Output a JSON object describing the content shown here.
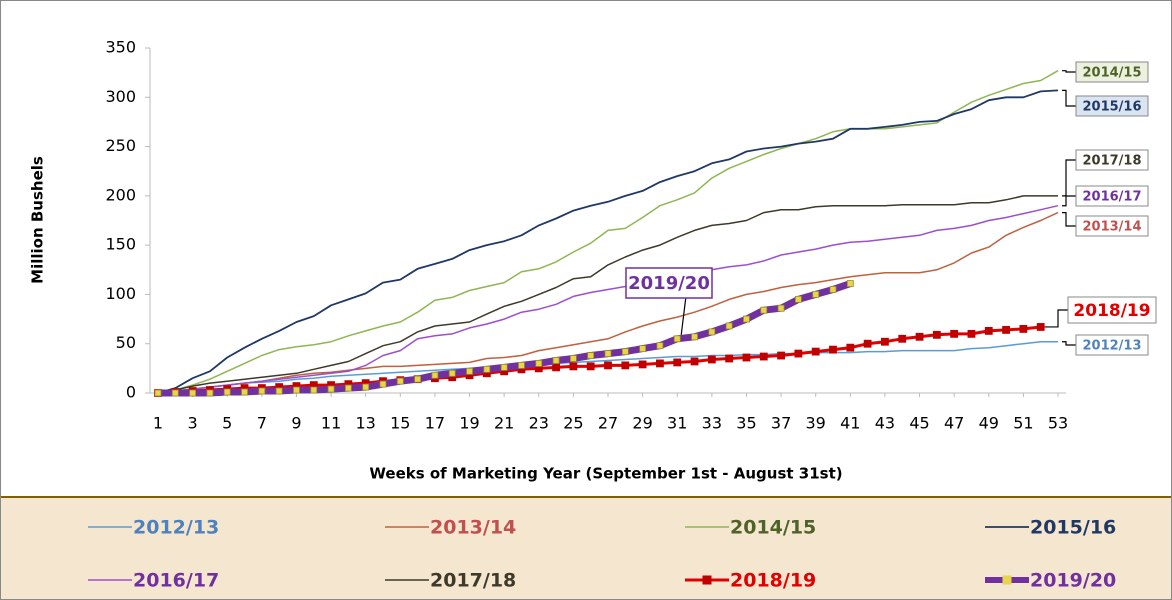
{
  "chart_data": {
    "type": "line",
    "y_label": "Million Bushels",
    "x_label": "Weeks of Marketing Year (September 1st - August 31st)",
    "x": [
      1,
      2,
      3,
      4,
      5,
      6,
      7,
      8,
      9,
      10,
      11,
      12,
      13,
      14,
      15,
      16,
      17,
      18,
      19,
      20,
      21,
      22,
      23,
      24,
      25,
      26,
      27,
      28,
      29,
      30,
      31,
      32,
      33,
      34,
      35,
      36,
      37,
      38,
      39,
      40,
      41,
      42,
      43,
      44,
      45,
      46,
      47,
      48,
      49,
      50,
      51,
      52,
      53
    ],
    "xlim": [
      1,
      53
    ],
    "xticks": [
      1,
      3,
      5,
      7,
      9,
      11,
      13,
      15,
      17,
      19,
      21,
      23,
      25,
      27,
      29,
      31,
      33,
      35,
      37,
      39,
      41,
      43,
      45,
      47,
      49,
      51,
      53
    ],
    "ylim": [
      0,
      350
    ],
    "yticks": [
      0,
      50,
      100,
      150,
      200,
      250,
      300,
      350
    ],
    "grid": false,
    "legend": "bottom",
    "series": [
      {
        "name": "2012/13",
        "color": "#5b9bd5",
        "text_color": "#4f81bd",
        "line_width": 1.5,
        "values": [
          0,
          2,
          4,
          6,
          8,
          10,
          11,
          12,
          14,
          15,
          17,
          18,
          19,
          20,
          21,
          22,
          23,
          24,
          25,
          26,
          27,
          28,
          29,
          30,
          31,
          32,
          33,
          34,
          35,
          36,
          37,
          37,
          38,
          38,
          39,
          39,
          40,
          40,
          41,
          41,
          41,
          42,
          42,
          43,
          43,
          43,
          43,
          45,
          46,
          48,
          50,
          52,
          52
        ]
      },
      {
        "name": "2013/14",
        "color": "#c0603d",
        "text_color": "#c0504d",
        "line_width": 1.5,
        "values": [
          0,
          2,
          4,
          6,
          8,
          10,
          12,
          15,
          18,
          20,
          21,
          23,
          25,
          27,
          27,
          28,
          29,
          30,
          31,
          35,
          36,
          38,
          43,
          46,
          49,
          52,
          55,
          62,
          68,
          73,
          77,
          82,
          88,
          95,
          100,
          103,
          107,
          110,
          112,
          115,
          118,
          120,
          122,
          122,
          122,
          125,
          132,
          142,
          148,
          160,
          168,
          175,
          183
        ]
      },
      {
        "name": "2014/15",
        "color": "#8fb652",
        "text_color": "#4f6228",
        "line_width": 1.5,
        "values": [
          0,
          3,
          8,
          14,
          22,
          30,
          38,
          44,
          47,
          49,
          52,
          58,
          63,
          68,
          72,
          82,
          94,
          97,
          104,
          108,
          112,
          123,
          126,
          133,
          143,
          152,
          165,
          167,
          178,
          190,
          196,
          203,
          218,
          228,
          235,
          242,
          248,
          253,
          258,
          265,
          268,
          268,
          268,
          270,
          272,
          274,
          285,
          295,
          302,
          308,
          314,
          317,
          327
        ]
      },
      {
        "name": "2015/16",
        "color": "#1f3864",
        "text_color": "#1f3864",
        "line_width": 1.8,
        "values": [
          0,
          5,
          15,
          22,
          36,
          46,
          55,
          63,
          72,
          78,
          89,
          95,
          101,
          112,
          115,
          126,
          131,
          136,
          145,
          150,
          154,
          160,
          170,
          177,
          185,
          190,
          194,
          200,
          205,
          214,
          220,
          225,
          233,
          237,
          245,
          248,
          250,
          253,
          255,
          258,
          268,
          268,
          270,
          272,
          275,
          276,
          283,
          288,
          297,
          300,
          300,
          306,
          307
        ]
      },
      {
        "name": "2016/17",
        "color": "#9b4fd0",
        "text_color": "#7030a0",
        "line_width": 1.5,
        "values": [
          0,
          2,
          4,
          6,
          8,
          10,
          12,
          14,
          16,
          18,
          20,
          22,
          28,
          38,
          43,
          55,
          58,
          60,
          66,
          70,
          75,
          82,
          85,
          90,
          98,
          102,
          105,
          108,
          113,
          115,
          118,
          121,
          125,
          128,
          130,
          134,
          140,
          143,
          146,
          150,
          153,
          154,
          156,
          158,
          160,
          165,
          167,
          170,
          175,
          178,
          182,
          186,
          190
        ]
      },
      {
        "name": "2017/18",
        "color": "#3d3a2a",
        "text_color": "#3d3a2a",
        "line_width": 1.5,
        "values": [
          0,
          3,
          7,
          10,
          12,
          14,
          16,
          18,
          20,
          24,
          28,
          32,
          40,
          48,
          52,
          62,
          68,
          70,
          72,
          80,
          88,
          93,
          100,
          107,
          116,
          118,
          130,
          138,
          145,
          150,
          158,
          165,
          170,
          172,
          175,
          183,
          186,
          186,
          189,
          190,
          190,
          190,
          190,
          191,
          191,
          191,
          191,
          193,
          193,
          196,
          200,
          200,
          200
        ]
      },
      {
        "name": "2018/19",
        "color": "#e00000",
        "text_color": "#e00000",
        "line_width": 3,
        "marker": "square",
        "marker_color": "#c00000",
        "values": [
          0,
          1,
          2,
          3,
          4,
          5,
          5,
          6,
          7,
          8,
          8,
          9,
          10,
          12,
          13,
          14,
          15,
          16,
          18,
          20,
          22,
          24,
          25,
          26,
          27,
          27,
          28,
          28,
          29,
          30,
          31,
          32,
          34,
          35,
          36,
          37,
          38,
          40,
          42,
          44,
          46,
          50,
          52,
          55,
          57,
          59,
          60,
          60,
          63,
          64,
          65,
          67,
          null
        ]
      },
      {
        "name": "2019/20",
        "color": "#7030a0",
        "text_color": "#7030a0",
        "line_width": 7,
        "marker": "square",
        "marker_color": "#e8d44d",
        "values": [
          0,
          0,
          0,
          0,
          1,
          1,
          2,
          2,
          3,
          3,
          4,
          5,
          6,
          9,
          12,
          14,
          18,
          20,
          22,
          24,
          26,
          28,
          30,
          33,
          35,
          38,
          40,
          42,
          45,
          48,
          55,
          57,
          62,
          68,
          75,
          84,
          86,
          95,
          100,
          105,
          111,
          null,
          null,
          null,
          null,
          null,
          null,
          null,
          null,
          null,
          null,
          null,
          null
        ]
      }
    ]
  }
}
